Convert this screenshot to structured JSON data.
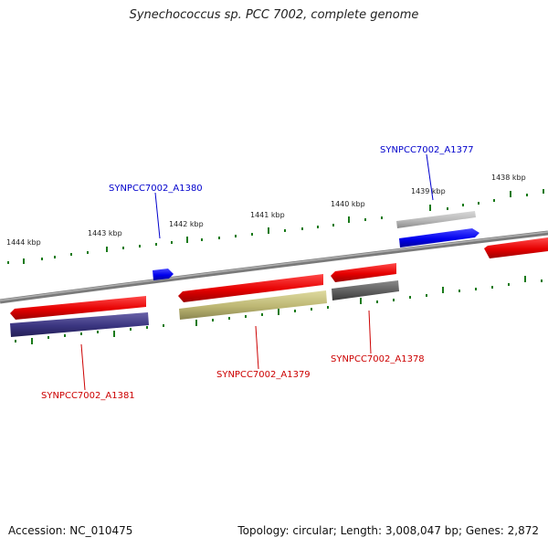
{
  "title": "Synechococcus sp. PCC 7002, complete genome",
  "colors": {
    "forward_gene": "#0000ee",
    "reverse_gene": "#ee0000",
    "backbone": "#7a7a7a",
    "ticks": "#1a7a1a",
    "label_forward": "#0000cc",
    "label_reverse": "#cc0000"
  },
  "scale_labels": [
    "1444 kbp",
    "1443 kbp",
    "1442 kbp",
    "1441 kbp",
    "1440 kbp",
    "1439 kbp",
    "1438 kbp"
  ],
  "gene_labels": {
    "a1377": "SYNPCC7002_A1377",
    "a1380": "SYNPCC7002_A1380",
    "a1379": "SYNPCC7002_A1379",
    "a1378": "SYNPCC7002_A1378",
    "a1381": "SYNPCC7002_A1381"
  },
  "footer": {
    "accession": "Accession: NC_010475",
    "info": "Topology: circular; Length: 3,008,047 bp; Genes: 2,872"
  }
}
